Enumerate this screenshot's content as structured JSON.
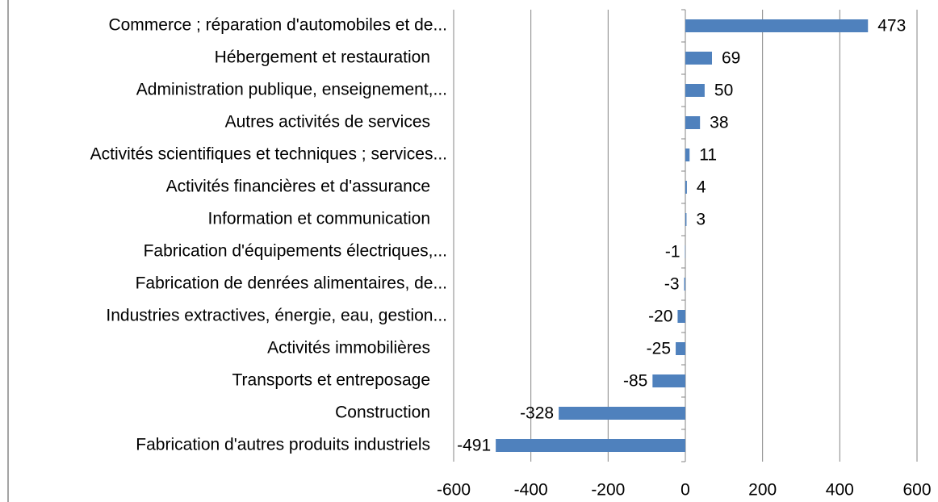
{
  "chart_data": {
    "type": "bar",
    "orientation": "horizontal",
    "categories": [
      "Commerce ; réparation d'automobiles et de...",
      "Hébergement et restauration",
      "Administration publique, enseignement,...",
      "Autres activités de services",
      "Activités scientifiques et techniques ; services...",
      "Activités financières et d'assurance",
      "Information et communication",
      "Fabrication d'équipements électriques,...",
      "Fabrication de denrées alimentaires, de...",
      "Industries extractives, énergie, eau, gestion...",
      "Activités immobilières",
      "Transports et entreposage",
      "Construction",
      "Fabrication d'autres produits industriels"
    ],
    "values": [
      473,
      69,
      50,
      38,
      11,
      4,
      3,
      -1,
      -3,
      -20,
      -25,
      -85,
      -328,
      -491
    ],
    "color": "#4f81bd",
    "xlim": [
      -600,
      600
    ],
    "xticks": [
      -600,
      -400,
      -200,
      0,
      200,
      400,
      600
    ],
    "grid": true
  }
}
